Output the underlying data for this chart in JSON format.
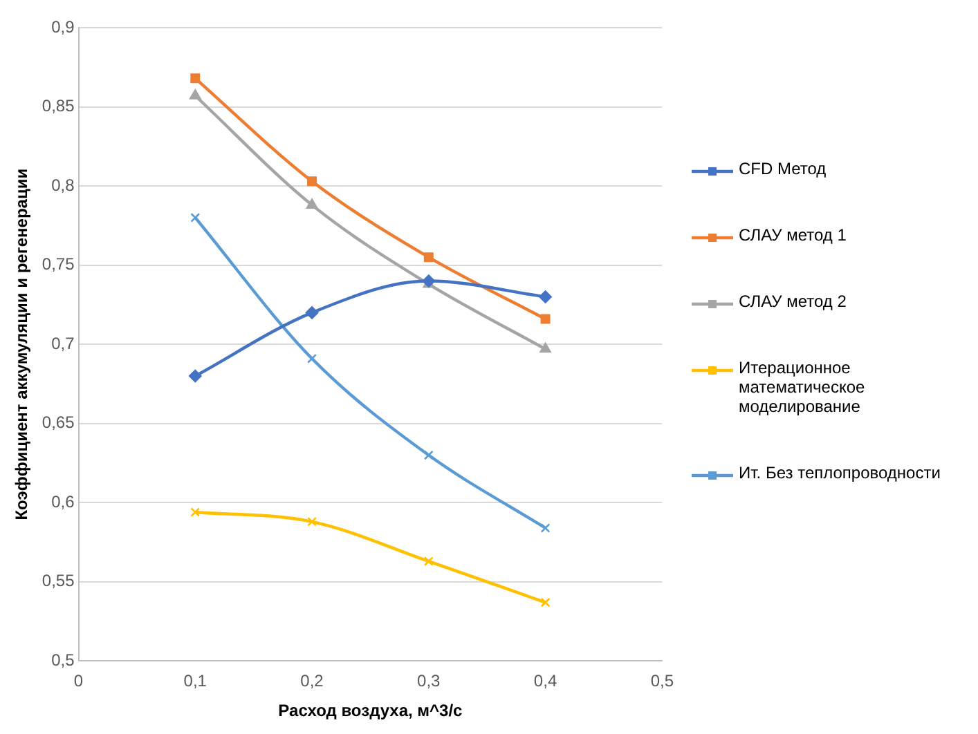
{
  "chart_data": {
    "type": "line",
    "xlabel": "Расход воздуха, м^3/с",
    "ylabel": "Коэффициент аккумуляции и регенерации",
    "x": [
      0.1,
      0.2,
      0.3,
      0.4
    ],
    "series": [
      {
        "name": "CFD Метод",
        "color": "#4472c4",
        "marker": "diamond",
        "values": [
          0.68,
          0.72,
          0.74,
          0.73
        ]
      },
      {
        "name": "СЛАУ метод 1",
        "color": "#ed7d31",
        "marker": "square",
        "values": [
          0.868,
          0.803,
          0.755,
          0.716
        ]
      },
      {
        "name": "СЛАУ метод 2",
        "color": "#a5a5a5",
        "marker": "triangle",
        "values": [
          0.857,
          0.788,
          0.738,
          0.697
        ]
      },
      {
        "name": "Итерационное математическое моделирование",
        "color": "#ffc000",
        "marker": "cross",
        "values": [
          0.594,
          0.588,
          0.563,
          0.537
        ]
      },
      {
        "name": "Ит. Без теплопроводности",
        "color": "#5b9bd5",
        "marker": "cross",
        "values": [
          0.78,
          0.691,
          0.63,
          0.584
        ]
      }
    ],
    "xlim": [
      0,
      0.5
    ],
    "xticks": [
      0,
      {
        "value": 0.1,
        "label": "0,1"
      },
      {
        "value": 0.2,
        "label": "0,2"
      },
      {
        "value": 0.3,
        "label": "0,3"
      },
      {
        "value": 0.4,
        "label": "0,4"
      },
      {
        "value": 0.5,
        "label": "0,5"
      }
    ],
    "ylim": [
      0.5,
      0.9
    ],
    "yticks": [
      {
        "value": 0.5,
        "label": "0,5"
      },
      {
        "value": 0.55,
        "label": "0,55"
      },
      {
        "value": 0.6,
        "label": "0,6"
      },
      {
        "value": 0.65,
        "label": "0,65"
      },
      {
        "value": 0.7,
        "label": "0,7"
      },
      {
        "value": 0.75,
        "label": "0,75"
      },
      {
        "value": 0.8,
        "label": "0,8"
      },
      {
        "value": 0.85,
        "label": "0,85"
      },
      {
        "value": 0.9,
        "label": "0,9"
      }
    ],
    "grid": "y",
    "legend": "right"
  }
}
